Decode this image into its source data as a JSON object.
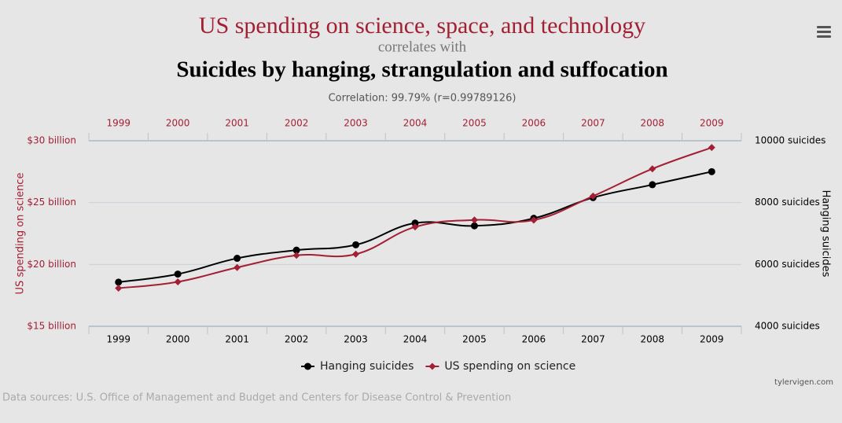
{
  "chart_data": {
    "type": "line",
    "title": "US spending on science, space, and technology",
    "subtitle": "correlates with",
    "title2": "Suicides by hanging, strangulation and suffocation",
    "correlation": "Correlation: 99.79% (r=0.99789126)",
    "ylabel": "US spending on science",
    "y2label": "Hanging suicides",
    "categories": [
      "1999",
      "2000",
      "2001",
      "2002",
      "2003",
      "2004",
      "2005",
      "2006",
      "2007",
      "2008",
      "2009"
    ],
    "series": [
      {
        "name": "Hanging suicides",
        "color": "#000000",
        "axis": "y2",
        "marker": "circle",
        "values": [
          5427,
          5688,
          6198,
          6462,
          6635,
          7336,
          7248,
          7491,
          8161,
          8578,
          9000
        ]
      },
      {
        "name": "US spending on science",
        "color": "#a31f34",
        "marker": "diamond",
        "values": [
          18.079,
          18.594,
          19.753,
          20.734,
          20.831,
          23.029,
          23.597,
          23.584,
          25.525,
          27.731,
          29.449
        ]
      }
    ],
    "ylim": [
      15,
      30
    ],
    "yticks": [
      {
        "value": 15,
        "label": "$15 billion"
      },
      {
        "value": 20,
        "label": "$20 billion"
      },
      {
        "value": 25,
        "label": "$25 billion"
      },
      {
        "value": 30,
        "label": "$30 billion"
      }
    ],
    "y2lim": [
      4000,
      10000
    ],
    "y2ticks": [
      {
        "value": 4000,
        "label": "4000 suicides"
      },
      {
        "value": 6000,
        "label": "6000 suicides"
      },
      {
        "value": 8000,
        "label": "8000 suicides"
      },
      {
        "value": 10000,
        "label": "10000 suicides"
      }
    ],
    "grid": true,
    "source": "Data sources: U.S. Office of Management and Budget and Centers for Disease Control & Prevention",
    "credit": "tylervigen.com"
  }
}
